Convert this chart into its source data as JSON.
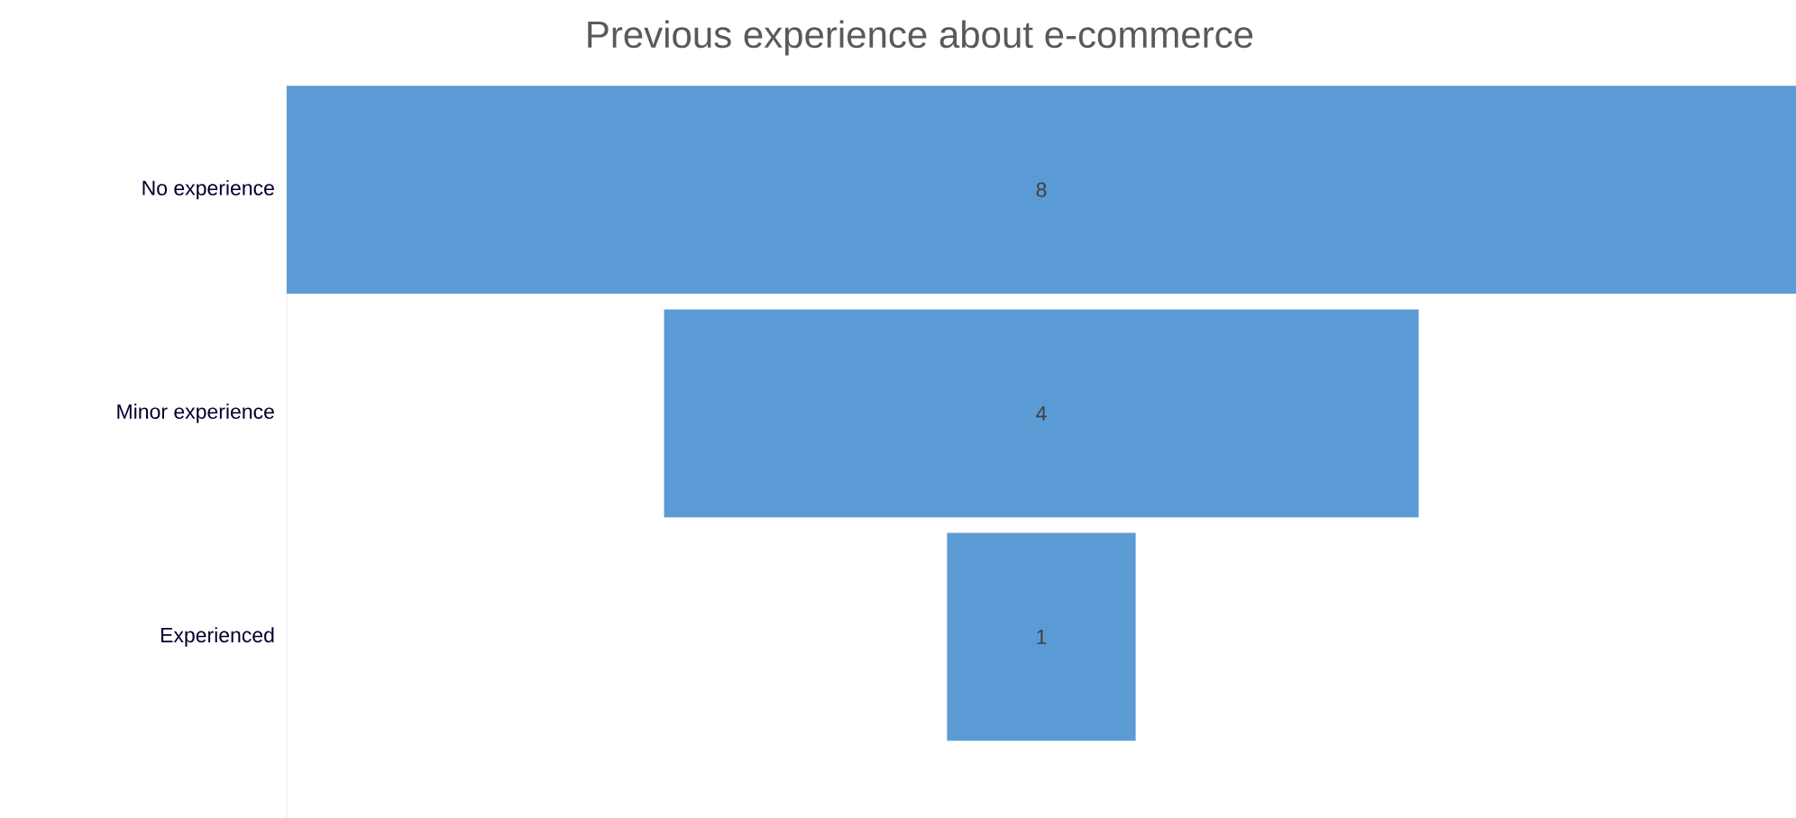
{
  "chart_data": {
    "type": "other",
    "title": "Previous experience about e-commerce",
    "categories": [
      "No experience",
      "Minor experience",
      "Experienced"
    ],
    "values": [
      8,
      4,
      1
    ],
    "color": "#5b9bd5",
    "data_labels": true
  }
}
